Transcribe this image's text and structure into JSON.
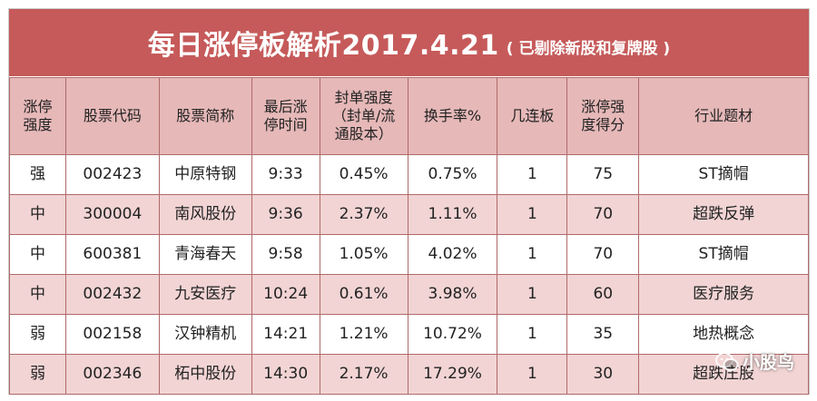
{
  "title": {
    "main": "每日涨停板解析2017.4.21",
    "sub": "( 已剔除新股和复牌股 )"
  },
  "table": {
    "headers": [
      [
        "涨停",
        "强度"
      ],
      [
        "股票代码"
      ],
      [
        "股票简称"
      ],
      [
        "最后涨",
        "停时间"
      ],
      [
        "封单强度",
        "（封单/流",
        "通股本）"
      ],
      [
        "换手率%"
      ],
      [
        "几连板"
      ],
      [
        "涨停强",
        "度得分"
      ],
      [
        "行业题材"
      ]
    ],
    "rows": [
      [
        "强",
        "002423",
        "中原特钢",
        "9:33",
        "0.45%",
        "0.75%",
        "1",
        "75",
        "ST摘帽"
      ],
      [
        "中",
        "300004",
        "南风股份",
        "9:36",
        "2.37%",
        "1.11%",
        "1",
        "70",
        "超跌反弹"
      ],
      [
        "中",
        "600381",
        "青海春天",
        "9:58",
        "1.05%",
        "4.02%",
        "1",
        "70",
        "ST摘帽"
      ],
      [
        "中",
        "002432",
        "九安医疗",
        "10:24",
        "0.61%",
        "3.98%",
        "1",
        "60",
        "医疗服务"
      ],
      [
        "弱",
        "002158",
        "汉钟精机",
        "14:21",
        "1.21%",
        "10.72%",
        "1",
        "35",
        "地热概念"
      ],
      [
        "弱",
        "002346",
        "柘中股份",
        "14:30",
        "2.17%",
        "17.29%",
        "1",
        "30",
        "超跌庄股"
      ]
    ]
  },
  "watermark": {
    "icon": "wechat-icon",
    "text": "小股鸟"
  },
  "colors": {
    "title_bg": "#c65a5a",
    "header_bg": "#e6b8b8",
    "stripe_bg": "#f2d4d4",
    "border": "#b06a6a"
  }
}
